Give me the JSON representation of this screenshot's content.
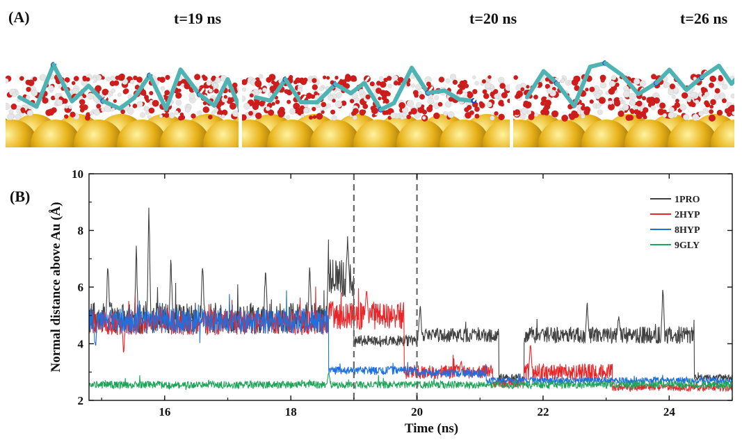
{
  "panels": {
    "a_label": "(A)",
    "b_label": "(B)",
    "snapshots": [
      {
        "label": "t=19 ns"
      },
      {
        "label": "t=20 ns"
      },
      {
        "label": "t=26 ns"
      }
    ]
  },
  "colors": {
    "gold": "#e8b21a",
    "carbon": "#4fb3b3",
    "oxygen": "#d11c1c",
    "hydrogen": "#e6e6e6",
    "nitrogen": "#1f3fd1"
  },
  "chart_data": {
    "type": "line",
    "xlabel": "Time (ns)",
    "ylabel": "Normal distance above Au (Å)",
    "xlim": [
      14.8,
      25.0
    ],
    "ylim": [
      2,
      10
    ],
    "xticks": [
      "16",
      "18",
      "20",
      "22",
      "24"
    ],
    "yticks": [
      "2",
      "4",
      "6",
      "8",
      "10"
    ],
    "vlines": [
      19,
      20
    ],
    "legend_position": "top-right",
    "series": [
      {
        "name": "1PRO",
        "color": "#404040",
        "segments": [
          {
            "x0": 14.8,
            "x1": 18.6,
            "mean": 4.9,
            "noise": 0.55,
            "spikes": [
              [
                15.1,
                7.3
              ],
              [
                15.55,
                7.6
              ],
              [
                15.75,
                9.5
              ],
              [
                16.1,
                7.3
              ],
              [
                16.6,
                7.4
              ],
              [
                17.6,
                7.3
              ],
              [
                18.3,
                7.0
              ],
              [
                18.6,
                7.9
              ]
            ]
          },
          {
            "x0": 18.6,
            "x1": 19.0,
            "mean": 6.3,
            "noise": 0.7,
            "spikes": [
              [
                18.9,
                7.9
              ]
            ]
          },
          {
            "x0": 19.0,
            "x1": 20.0,
            "mean": 4.1,
            "noise": 0.2,
            "spikes": []
          },
          {
            "x0": 20.0,
            "x1": 21.3,
            "mean": 4.3,
            "noise": 0.25,
            "spikes": [
              [
                20.05,
                5.6
              ]
            ]
          },
          {
            "x0": 21.3,
            "x1": 21.7,
            "mean": 2.8,
            "noise": 0.15,
            "spikes": []
          },
          {
            "x0": 21.7,
            "x1": 24.4,
            "mean": 4.3,
            "noise": 0.3,
            "spikes": [
              [
                22.7,
                5.6
              ],
              [
                23.2,
                5.2
              ],
              [
                23.9,
                6.3
              ]
            ]
          },
          {
            "x0": 24.4,
            "x1": 25.0,
            "mean": 2.8,
            "noise": 0.12,
            "spikes": []
          }
        ]
      },
      {
        "name": "2HYP",
        "color": "#e8272a",
        "segments": [
          {
            "x0": 14.8,
            "x1": 18.6,
            "mean": 4.75,
            "noise": 0.45,
            "spikes": [
              [
                15.35,
                3.4
              ]
            ]
          },
          {
            "x0": 18.6,
            "x1": 19.8,
            "mean": 5.0,
            "noise": 0.5,
            "spikes": [
              [
                19.2,
                6.2
              ]
            ]
          },
          {
            "x0": 19.8,
            "x1": 21.2,
            "mean": 3.0,
            "noise": 0.25,
            "spikes": [
              [
                20.7,
                3.5
              ]
            ]
          },
          {
            "x0": 21.2,
            "x1": 21.7,
            "mean": 2.6,
            "noise": 0.15,
            "spikes": []
          },
          {
            "x0": 21.7,
            "x1": 23.1,
            "mean": 3.0,
            "noise": 0.3,
            "spikes": [
              [
                21.8,
                4.2
              ]
            ]
          },
          {
            "x0": 23.1,
            "x1": 25.0,
            "mean": 2.45,
            "noise": 0.12,
            "spikes": []
          }
        ]
      },
      {
        "name": "8HYP",
        "color": "#1e6fe0",
        "segments": [
          {
            "x0": 14.8,
            "x1": 18.6,
            "mean": 4.8,
            "noise": 0.45,
            "spikes": [
              [
                14.9,
                3.6
              ]
            ]
          },
          {
            "x0": 18.6,
            "x1": 20.0,
            "mean": 3.05,
            "noise": 0.15,
            "spikes": []
          },
          {
            "x0": 20.0,
            "x1": 21.1,
            "mean": 2.95,
            "noise": 0.15,
            "spikes": []
          },
          {
            "x0": 21.1,
            "x1": 25.0,
            "mean": 2.7,
            "noise": 0.12,
            "spikes": []
          }
        ]
      },
      {
        "name": "9GLY",
        "color": "#1fa45a",
        "segments": [
          {
            "x0": 14.8,
            "x1": 25.0,
            "mean": 2.55,
            "noise": 0.13,
            "spikes": [
              [
                18.6,
                3.1
              ]
            ]
          }
        ]
      }
    ]
  }
}
